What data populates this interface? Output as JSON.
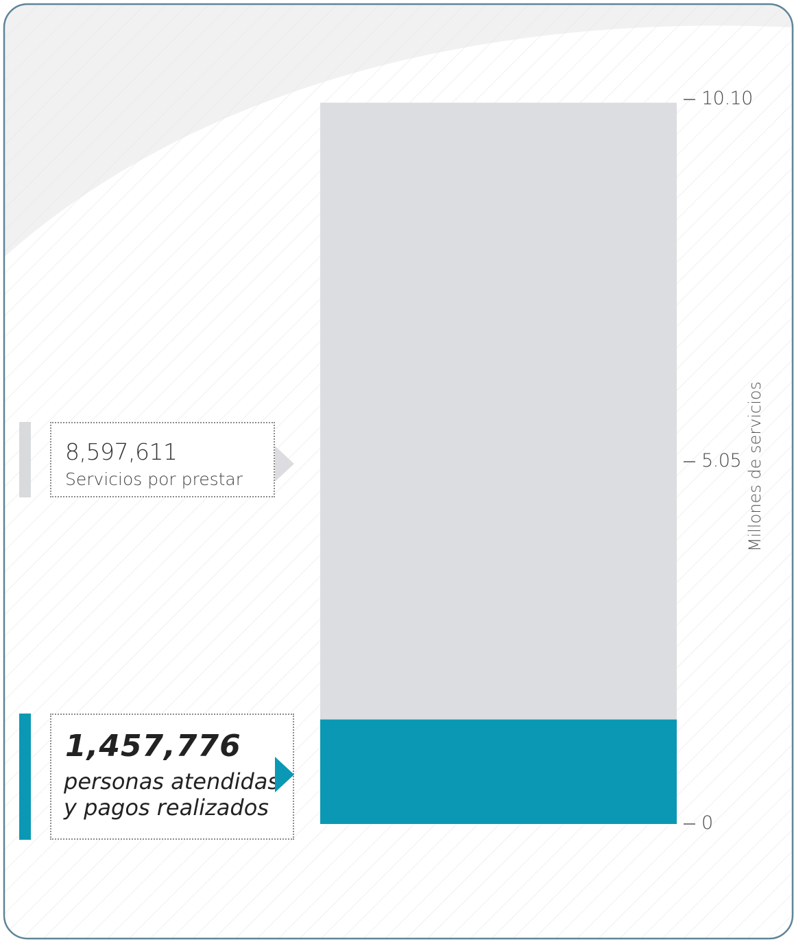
{
  "chart_data": {
    "type": "bar",
    "stacked": true,
    "categories": [
      ""
    ],
    "series": [
      {
        "name": "personas atendidas y pagos realizados",
        "values": [
          1.457776
        ],
        "color": "#0b98b4"
      },
      {
        "name": "Servicios por prestar",
        "values": [
          8.597611
        ],
        "color": "#dcdde0"
      }
    ],
    "xlabel": "",
    "ylabel": "Millones de servicios",
    "ylim": [
      0,
      10.1
    ],
    "yticks": [
      {
        "value": 0,
        "label": "0"
      },
      {
        "value": 5.05,
        "label": "5.05"
      },
      {
        "value": 10.1,
        "label": "10.10"
      }
    ],
    "grid": false
  },
  "callouts": {
    "gray": {
      "value": "8,597,611",
      "label": "Servicios por prestar"
    },
    "teal": {
      "value": "1,457,776",
      "label_line1": "personas atendidas",
      "label_line2": "y pagos realizados"
    }
  },
  "colors": {
    "frame_border": "#5e8596",
    "background_gray": "#f1f1f2",
    "hatch": "#e6e6e8",
    "teal": "#0b98b4",
    "gray_bar": "#dcdde0"
  }
}
